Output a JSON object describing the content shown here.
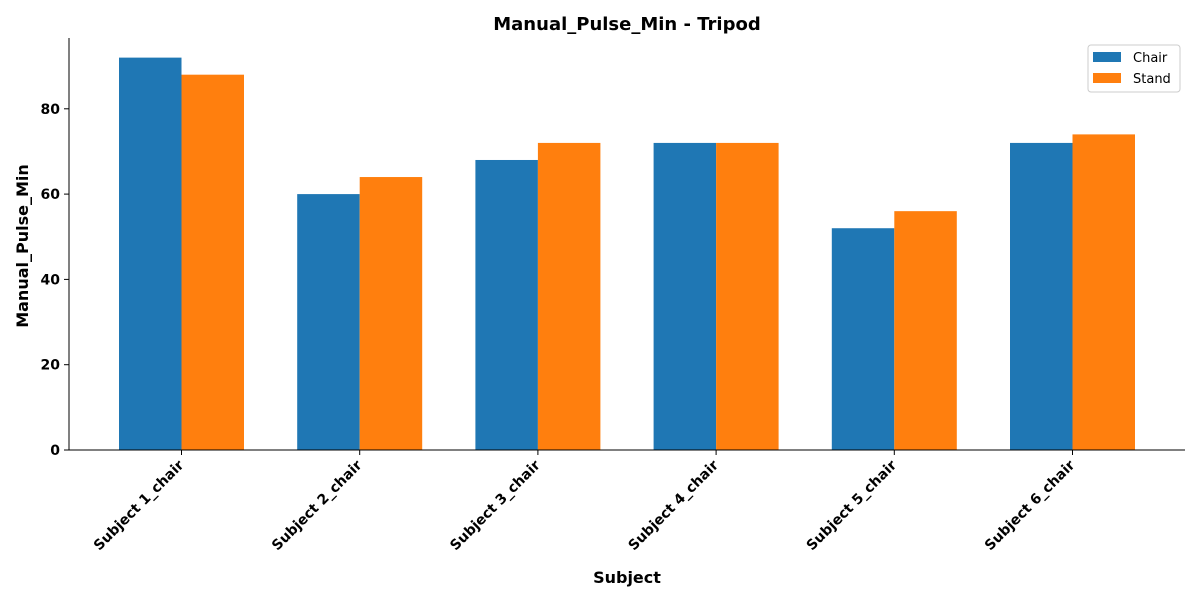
{
  "chart_data": {
    "type": "bar",
    "title": "Manual_Pulse_Min - Tripod",
    "xlabel": "Subject",
    "ylabel": "Manual_Pulse_Min",
    "categories": [
      "Subject 1_chair",
      "Subject 2_chair",
      "Subject 3_chair",
      "Subject 4_chair",
      "Subject 5_chair",
      "Subject 6_chair"
    ],
    "series": [
      {
        "name": "Chair",
        "color": "#1f77b4",
        "values": [
          92,
          60,
          68,
          72,
          52,
          72
        ]
      },
      {
        "name": "Stand",
        "color": "#ff7f0e",
        "values": [
          88,
          64,
          72,
          72,
          56,
          74
        ]
      }
    ],
    "ylim": [
      0,
      96.6
    ],
    "yticks": [
      0,
      20,
      40,
      60,
      80
    ],
    "ytick_labels": [
      "0",
      "20",
      "40",
      "60",
      "80"
    ],
    "grid": false,
    "legend_position": "top-right"
  }
}
